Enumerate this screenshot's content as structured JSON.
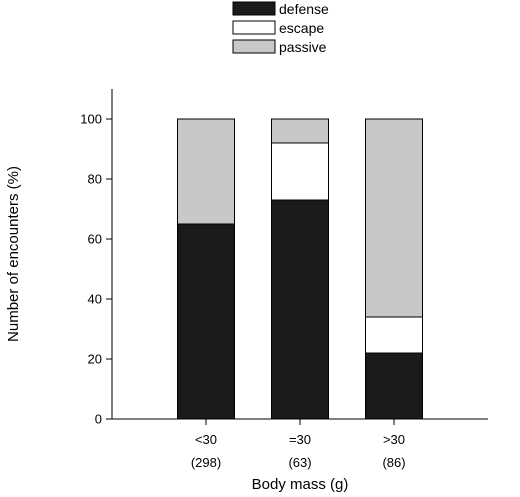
{
  "chart_data": {
    "type": "bar",
    "stacked": true,
    "categories": [
      "<30",
      "=30",
      ">30"
    ],
    "category_counts": [
      "(298)",
      "(63)",
      "(86)"
    ],
    "series": [
      {
        "name": "defense",
        "values": [
          65,
          73,
          22
        ],
        "color": "#1a1a1a"
      },
      {
        "name": "escape",
        "values": [
          0,
          19,
          12
        ],
        "color": "#ffffff"
      },
      {
        "name": "passive",
        "values": [
          35,
          8,
          66
        ],
        "color": "#c8c8c8"
      }
    ],
    "title": "",
    "xlabel": "Body mass (g)",
    "ylabel": "Number of encounters (%)",
    "ylim": [
      0,
      110
    ],
    "yticks": [
      0,
      20,
      40,
      60,
      80,
      100
    ],
    "grid": false,
    "legend_position": "top-center"
  }
}
